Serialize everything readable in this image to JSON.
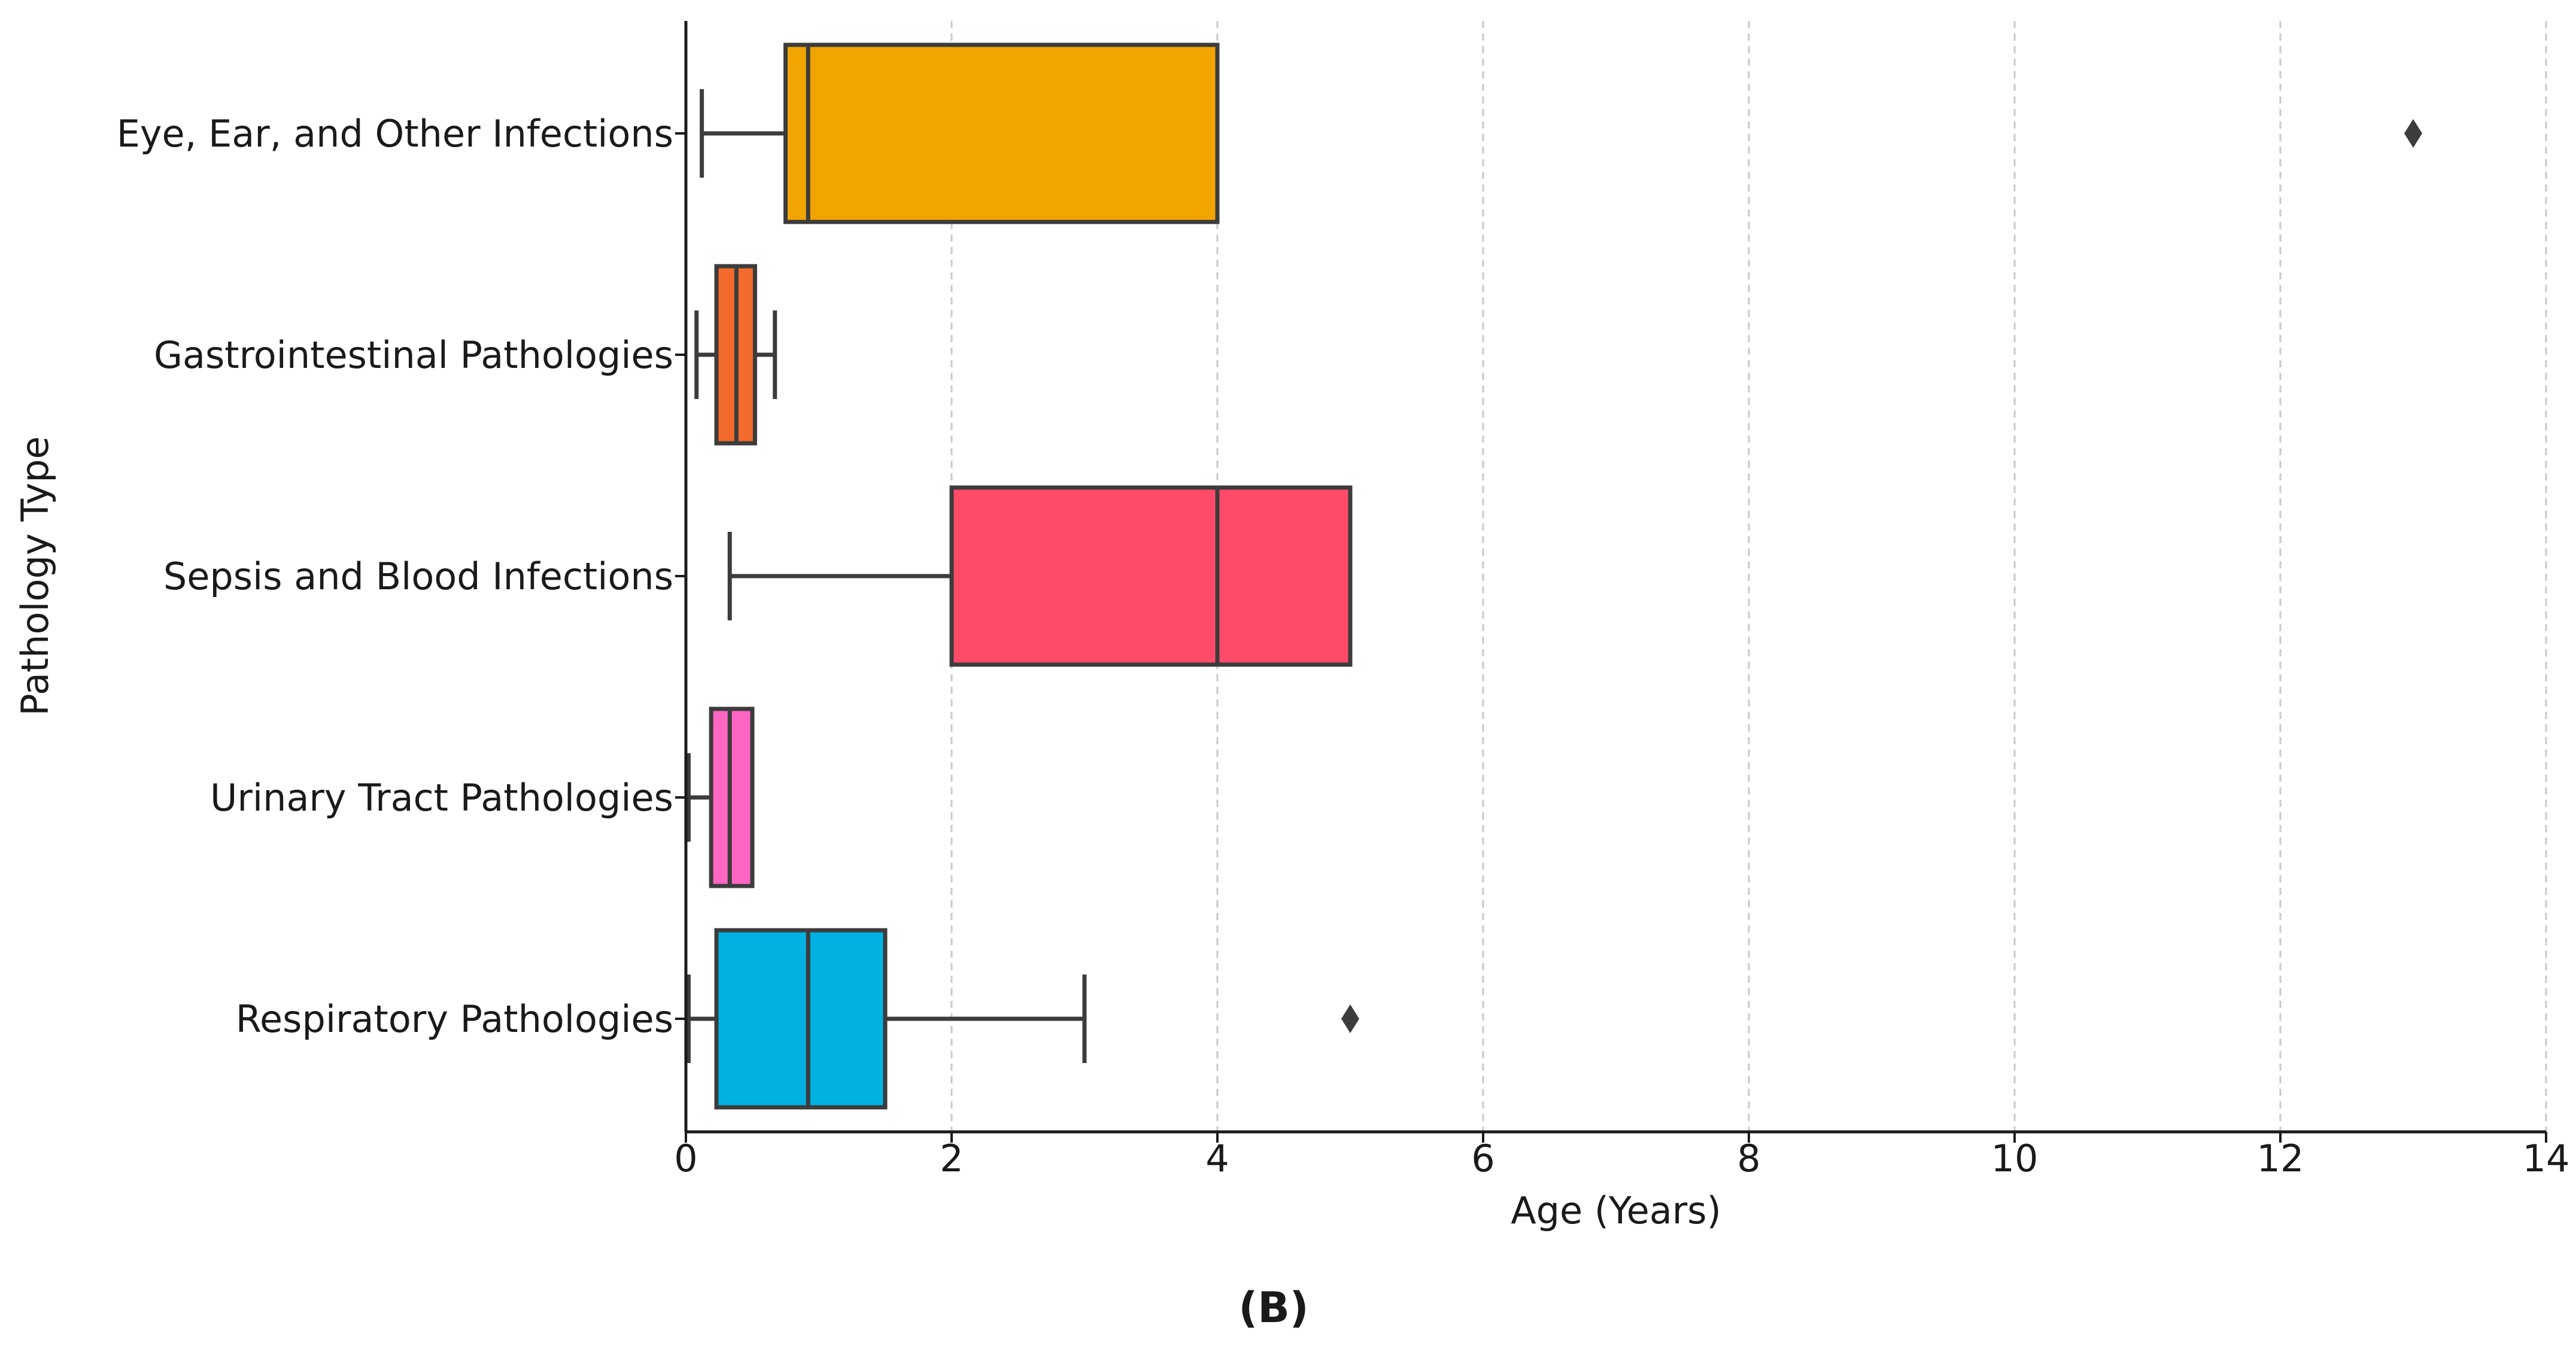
{
  "chart_data": {
    "type": "boxplot",
    "orientation": "horizontal",
    "xlabel": "Age (Years)",
    "ylabel": "Pathology Type",
    "xlim": [
      0,
      14
    ],
    "xticks": [
      0,
      2,
      4,
      6,
      8,
      10,
      12,
      14
    ],
    "grid": "vertical dashed",
    "panel_label": "(B)",
    "series": [
      {
        "name": "Eye, Ear, and Other Infections",
        "color": "#F2A500",
        "whisker_low": 0.12,
        "q1": 0.75,
        "median": 0.92,
        "q3": 4.0,
        "whisker_high": 4.0,
        "outliers": [
          13.0
        ]
      },
      {
        "name": "Gastrointestinal Pathologies",
        "color": "#F26B2C",
        "whisker_low": 0.08,
        "q1": 0.23,
        "median": 0.38,
        "q3": 0.52,
        "whisker_high": 0.67,
        "outliers": []
      },
      {
        "name": "Sepsis and Blood Infections",
        "color": "#FF4A6A",
        "whisker_low": 0.33,
        "q1": 2.0,
        "median": 4.0,
        "q3": 5.0,
        "whisker_high": 5.0,
        "outliers": []
      },
      {
        "name": "Urinary Tract Pathologies",
        "color": "#FF66C4",
        "whisker_low": 0.02,
        "q1": 0.19,
        "median": 0.33,
        "q3": 0.5,
        "whisker_high": 0.5,
        "outliers": []
      },
      {
        "name": "Respiratory Pathologies",
        "color": "#00B1E1",
        "whisker_low": 0.02,
        "q1": 0.23,
        "median": 0.92,
        "q3": 1.5,
        "whisker_high": 3.0,
        "outliers": [
          5.0
        ]
      }
    ]
  }
}
